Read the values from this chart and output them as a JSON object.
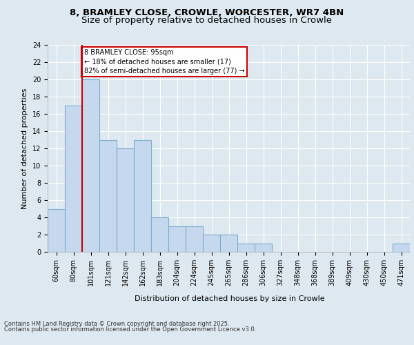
{
  "title_line1": "8, BRAMLEY CLOSE, CROWLE, WORCESTER, WR7 4BN",
  "title_line2": "Size of property relative to detached houses in Crowle",
  "xlabel": "Distribution of detached houses by size in Crowle",
  "ylabel": "Number of detached properties",
  "bar_labels": [
    "60sqm",
    "80sqm",
    "101sqm",
    "121sqm",
    "142sqm",
    "162sqm",
    "183sqm",
    "204sqm",
    "224sqm",
    "245sqm",
    "265sqm",
    "286sqm",
    "306sqm",
    "327sqm",
    "348sqm",
    "368sqm",
    "389sqm",
    "409sqm",
    "430sqm",
    "450sqm",
    "471sqm"
  ],
  "bar_values": [
    5,
    17,
    20,
    13,
    12,
    13,
    4,
    3,
    3,
    2,
    2,
    1,
    1,
    0,
    0,
    0,
    0,
    0,
    0,
    0,
    1
  ],
  "bar_color": "#c5d8ed",
  "bar_edgecolor": "#7aaed0",
  "bar_linewidth": 0.8,
  "vline_color": "#cc0000",
  "annotation_line1": "8 BRAMLEY CLOSE: 95sqm",
  "annotation_line2": "← 18% of detached houses are smaller (17)",
  "annotation_line3": "82% of semi-detached houses are larger (77) →",
  "annotation_box_facecolor": "#ffffff",
  "annotation_box_edgecolor": "#cc0000",
  "ylim": [
    0,
    24
  ],
  "yticks": [
    0,
    2,
    4,
    6,
    8,
    10,
    12,
    14,
    16,
    18,
    20,
    22,
    24
  ],
  "fig_bg_color": "#dde8f0",
  "plot_bg_color": "#dde8f0",
  "grid_color": "#ffffff",
  "footer_line1": "Contains HM Land Registry data © Crown copyright and database right 2025.",
  "footer_line2": "Contains public sector information licensed under the Open Government Licence v3.0.",
  "title1_fontsize": 9.5,
  "title2_fontsize": 9.5,
  "axis_label_fontsize": 8,
  "tick_fontsize": 7,
  "annotation_fontsize": 7,
  "footer_fontsize": 6
}
